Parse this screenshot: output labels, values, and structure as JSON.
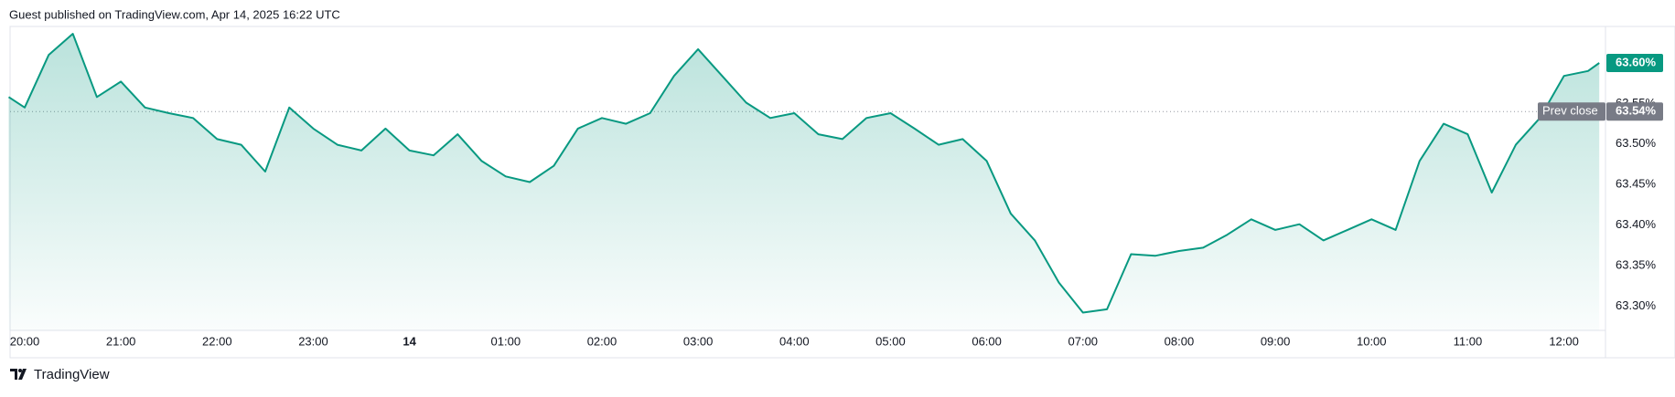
{
  "header": "Guest published on TradingView.com, Apr 14, 2025 16:22 UTC",
  "footer": "TradingView",
  "chart_data": {
    "type": "area",
    "color": "#089981",
    "x": [
      "19:50",
      "20:00",
      "20:15",
      "20:30",
      "20:45",
      "21:00",
      "21:15",
      "21:30",
      "21:45",
      "22:00",
      "22:15",
      "22:30",
      "22:45",
      "23:00",
      "23:15",
      "23:30",
      "23:45",
      "00:00",
      "00:15",
      "00:30",
      "00:45",
      "01:00",
      "01:15",
      "01:30",
      "01:45",
      "02:00",
      "02:15",
      "02:30",
      "02:45",
      "03:00",
      "03:15",
      "03:30",
      "03:45",
      "04:00",
      "04:15",
      "04:30",
      "04:45",
      "05:00",
      "05:15",
      "05:30",
      "05:45",
      "06:00",
      "06:15",
      "06:30",
      "06:45",
      "07:00",
      "07:15",
      "07:30",
      "07:45",
      "08:00",
      "08:15",
      "08:30",
      "08:45",
      "09:00",
      "09:15",
      "09:30",
      "09:45",
      "10:00",
      "10:15",
      "10:30",
      "10:45",
      "11:00",
      "11:15",
      "11:30",
      "11:45",
      "12:00",
      "12:15",
      "12:22"
    ],
    "values": [
      63.558,
      63.545,
      63.61,
      63.636,
      63.558,
      63.577,
      63.545,
      63.538,
      63.532,
      63.506,
      63.499,
      63.466,
      63.545,
      63.519,
      63.499,
      63.492,
      63.519,
      63.492,
      63.486,
      63.512,
      63.479,
      63.46,
      63.453,
      63.473,
      63.519,
      63.532,
      63.525,
      63.538,
      63.584,
      63.617,
      63.584,
      63.551,
      63.532,
      63.538,
      63.512,
      63.506,
      63.532,
      63.538,
      63.519,
      63.499,
      63.506,
      63.479,
      63.414,
      63.381,
      63.329,
      63.292,
      63.296,
      63.364,
      63.362,
      63.368,
      63.372,
      63.388,
      63.407,
      63.394,
      63.401,
      63.381,
      63.394,
      63.407,
      63.394,
      63.479,
      63.525,
      63.512,
      63.44,
      63.499,
      63.532,
      63.584,
      63.59,
      63.6
    ],
    "ylim": [
      63.27,
      63.645
    ],
    "yticks": [
      {
        "value": 63.3,
        "label": "63.30%"
      },
      {
        "value": 63.35,
        "label": "63.35%"
      },
      {
        "value": 63.4,
        "label": "63.40%"
      },
      {
        "value": 63.45,
        "label": "63.45%"
      },
      {
        "value": 63.5,
        "label": "63.50%"
      },
      {
        "value": 63.55,
        "label": "63.55%"
      }
    ],
    "xticks": [
      "20:00",
      "21:00",
      "22:00",
      "23:00",
      {
        "value": "00:00",
        "label": "14"
      },
      "01:00",
      "02:00",
      "03:00",
      "04:00",
      "05:00",
      "06:00",
      "07:00",
      "08:00",
      "09:00",
      "10:00",
      "11:00",
      "12:00"
    ],
    "last_price": {
      "value": 63.6,
      "label": "63.60%"
    },
    "prev_close": {
      "label": "Prev close",
      "value": 63.54,
      "value_label": "63.54%"
    }
  }
}
